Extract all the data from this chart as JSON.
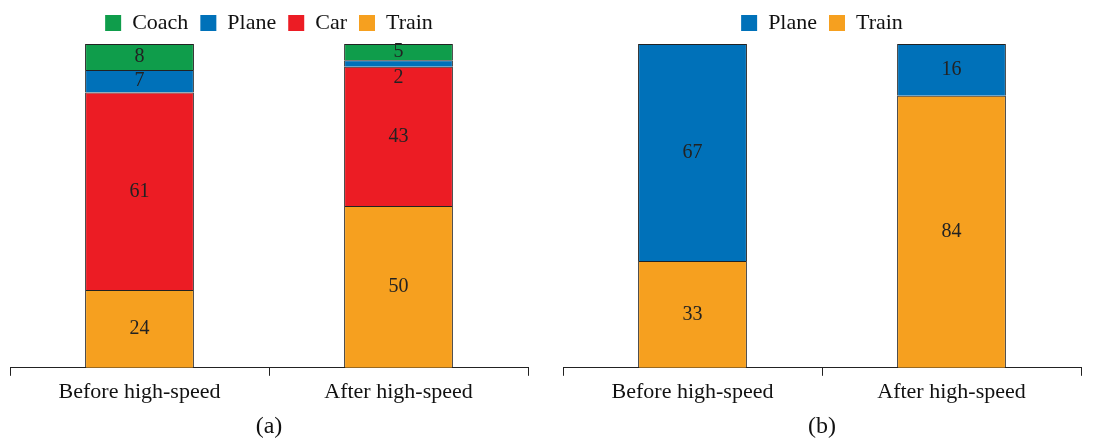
{
  "chart_data": [
    {
      "type": "bar",
      "stacked": true,
      "data_labels": true,
      "legend": "top",
      "xlabel": "(a)",
      "categories": [
        "Before high-speed",
        "After high-speed"
      ],
      "series": [
        {
          "name": "Train",
          "color": "#f6a01f",
          "values": [
            24,
            50
          ]
        },
        {
          "name": "Car",
          "color": "#ec1c24",
          "values": [
            61,
            43
          ]
        },
        {
          "name": "Plane",
          "color": "#0071b9",
          "values": [
            7,
            2
          ]
        },
        {
          "name": "Coach",
          "color": "#0f9d4b",
          "values": [
            8,
            5
          ]
        }
      ]
    },
    {
      "type": "bar",
      "stacked": true,
      "data_labels": true,
      "legend": "top",
      "xlabel": "(b)",
      "categories": [
        "Before high-speed",
        "After high-speed"
      ],
      "series": [
        {
          "name": "Train",
          "color": "#f6a01f",
          "values": [
            33,
            84
          ]
        },
        {
          "name": "Plane",
          "color": "#0071b9",
          "values": [
            67,
            16
          ]
        }
      ]
    }
  ]
}
